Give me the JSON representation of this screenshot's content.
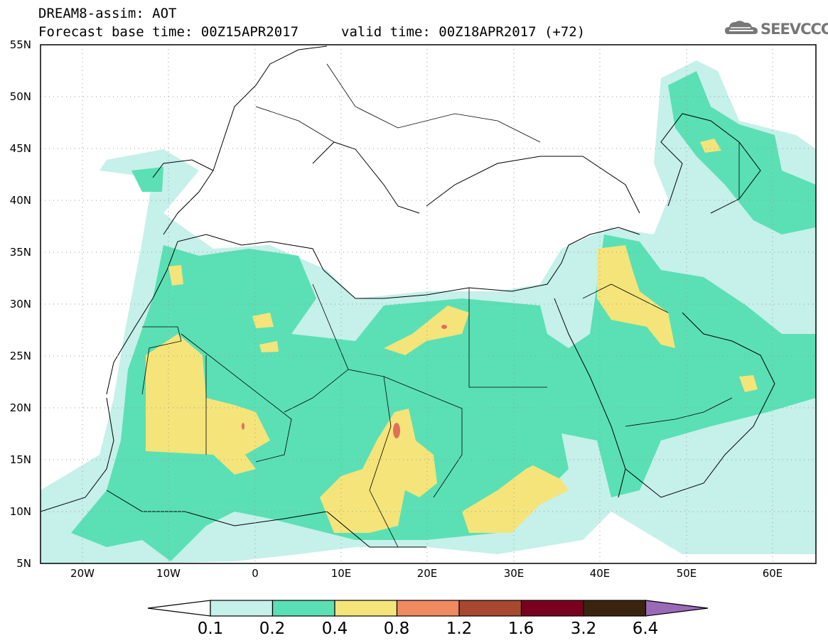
{
  "title_line1": "DREAM8-assim: AOT",
  "title_line2_base": "Forecast base time: 00Z15APR2017",
  "title_line2_valid": "valid time: 00Z18APR2017 (+72)",
  "logo_text": "SEEVCCC",
  "logo_icon": "cloud-icon",
  "lat_labels": [
    "55N",
    "50N",
    "45N",
    "40N",
    "35N",
    "30N",
    "25N",
    "20N",
    "15N",
    "10N",
    "5N"
  ],
  "lon_labels": [
    "20W",
    "10W",
    "0",
    "10E",
    "20E",
    "30E",
    "40E",
    "50E",
    "60E"
  ],
  "colorbar": {
    "labels": [
      "0.1",
      "0.2",
      "0.4",
      "0.8",
      "1.2",
      "1.6",
      "3.2",
      "6.4"
    ],
    "colors": [
      "#c6f0ea",
      "#5ae0b4",
      "#f5e47a",
      "#f08a60",
      "#a84830",
      "#7a0020",
      "#3a2410"
    ],
    "under_color": "#ffffff",
    "over_color": "#9a6ab8"
  },
  "field_colors": {
    "low": "#c6f0ea",
    "mid": "#5ae0b4",
    "high": "#f5e47a",
    "peak": "#e0705a"
  }
}
